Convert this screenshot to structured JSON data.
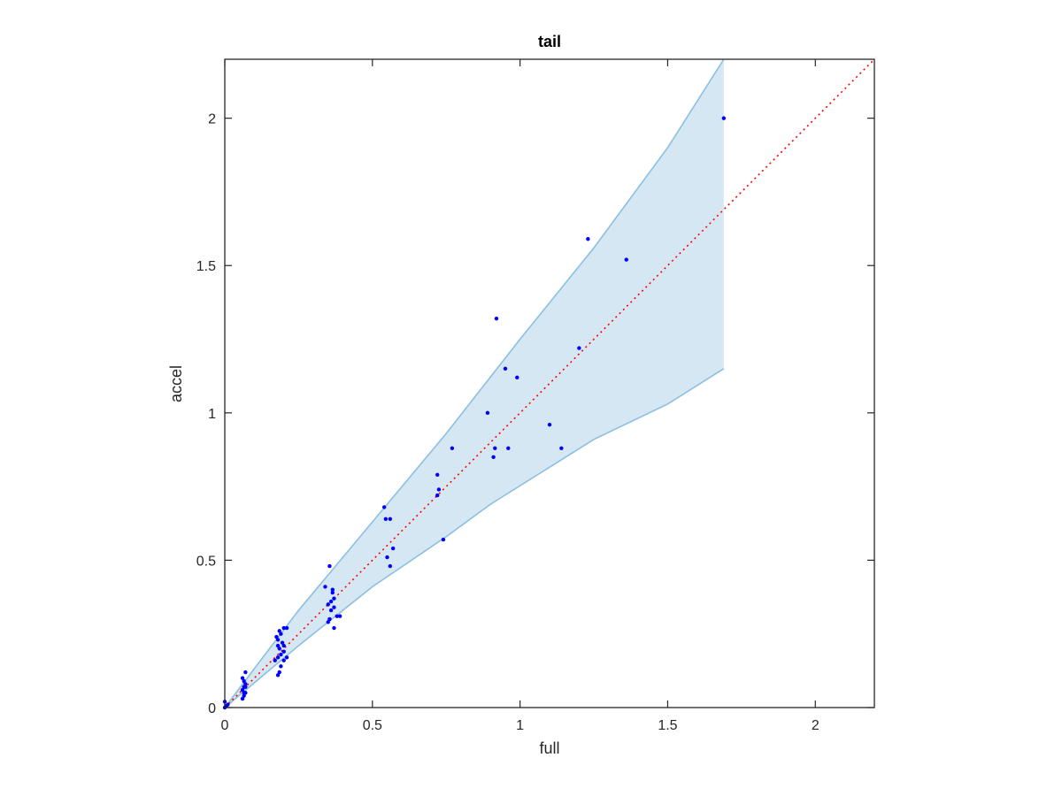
{
  "chart_data": {
    "type": "scatter",
    "title": "tail",
    "xlabel": "full",
    "ylabel": "accel",
    "xlim": [
      0,
      2.2
    ],
    "ylim": [
      0,
      2.2
    ],
    "xticks": [
      0,
      0.5,
      1,
      1.5,
      2
    ],
    "yticks": [
      0,
      0.5,
      1,
      1.5,
      2
    ],
    "xtick_labels": [
      "0",
      "0.5",
      "1",
      "1.5",
      "2"
    ],
    "ytick_labels": [
      "0",
      "0.5",
      "1",
      "1.5",
      "2"
    ],
    "grid": false,
    "colors": {
      "points": "#0000ff",
      "band_fill": "#d6e7f4",
      "band_edge": "#8bbfe0",
      "reference_line": "#ff0000",
      "axes": "#262626"
    },
    "reference_line": {
      "style": "dotted",
      "x": [
        0,
        2.2
      ],
      "y": [
        0,
        2.2
      ]
    },
    "band": {
      "upper": {
        "x": [
          0,
          0.25,
          0.5,
          0.75,
          1.0,
          1.25,
          1.5,
          1.69
        ],
        "y": [
          0,
          0.33,
          0.63,
          0.93,
          1.25,
          1.56,
          1.9,
          2.2
        ]
      },
      "lower": {
        "x": [
          0,
          0.25,
          0.5,
          0.75,
          0.9,
          1.25,
          1.5,
          1.69
        ],
        "y": [
          0,
          0.21,
          0.41,
          0.58,
          0.69,
          0.91,
          1.03,
          1.15
        ]
      }
    },
    "series": [
      {
        "x": [
          0.0,
          0.005,
          0.01,
          0.0,
          0.06,
          0.065,
          0.07,
          0.06,
          0.065,
          0.07,
          0.065,
          0.06,
          0.07,
          0.065,
          0.07,
          0.06,
          0.18,
          0.185,
          0.19,
          0.2,
          0.18,
          0.19,
          0.2,
          0.185,
          0.195,
          0.17,
          0.18,
          0.175,
          0.19,
          0.2,
          0.21,
          0.18,
          0.185,
          0.2,
          0.21,
          0.35,
          0.355,
          0.36,
          0.37,
          0.35,
          0.36,
          0.365,
          0.34,
          0.355,
          0.37,
          0.38,
          0.355,
          0.365,
          0.37,
          0.39,
          0.54,
          0.545,
          0.56,
          0.55,
          0.56,
          0.57,
          0.72,
          0.725,
          0.72,
          0.74,
          0.77,
          0.89,
          0.91,
          0.915,
          0.92,
          0.95,
          0.96,
          0.99,
          1.1,
          1.14,
          1.2,
          1.23,
          1.36,
          1.69
        ],
        "y": [
          0.0,
          0.005,
          0.01,
          0.02,
          0.03,
          0.04,
          0.05,
          0.06,
          0.07,
          0.08,
          0.09,
          0.1,
          0.12,
          0.05,
          0.07,
          0.03,
          0.11,
          0.12,
          0.14,
          0.16,
          0.17,
          0.18,
          0.19,
          0.2,
          0.22,
          0.16,
          0.21,
          0.24,
          0.25,
          0.27,
          0.27,
          0.23,
          0.26,
          0.21,
          0.17,
          0.29,
          0.3,
          0.33,
          0.34,
          0.35,
          0.36,
          0.39,
          0.41,
          0.48,
          0.37,
          0.31,
          0.3,
          0.4,
          0.27,
          0.31,
          0.68,
          0.64,
          0.64,
          0.51,
          0.48,
          0.54,
          0.72,
          0.74,
          0.79,
          0.57,
          0.88,
          1.0,
          0.85,
          0.88,
          1.32,
          1.15,
          0.88,
          1.12,
          0.96,
          0.88,
          1.22,
          1.59,
          1.52,
          2.0
        ]
      }
    ]
  }
}
